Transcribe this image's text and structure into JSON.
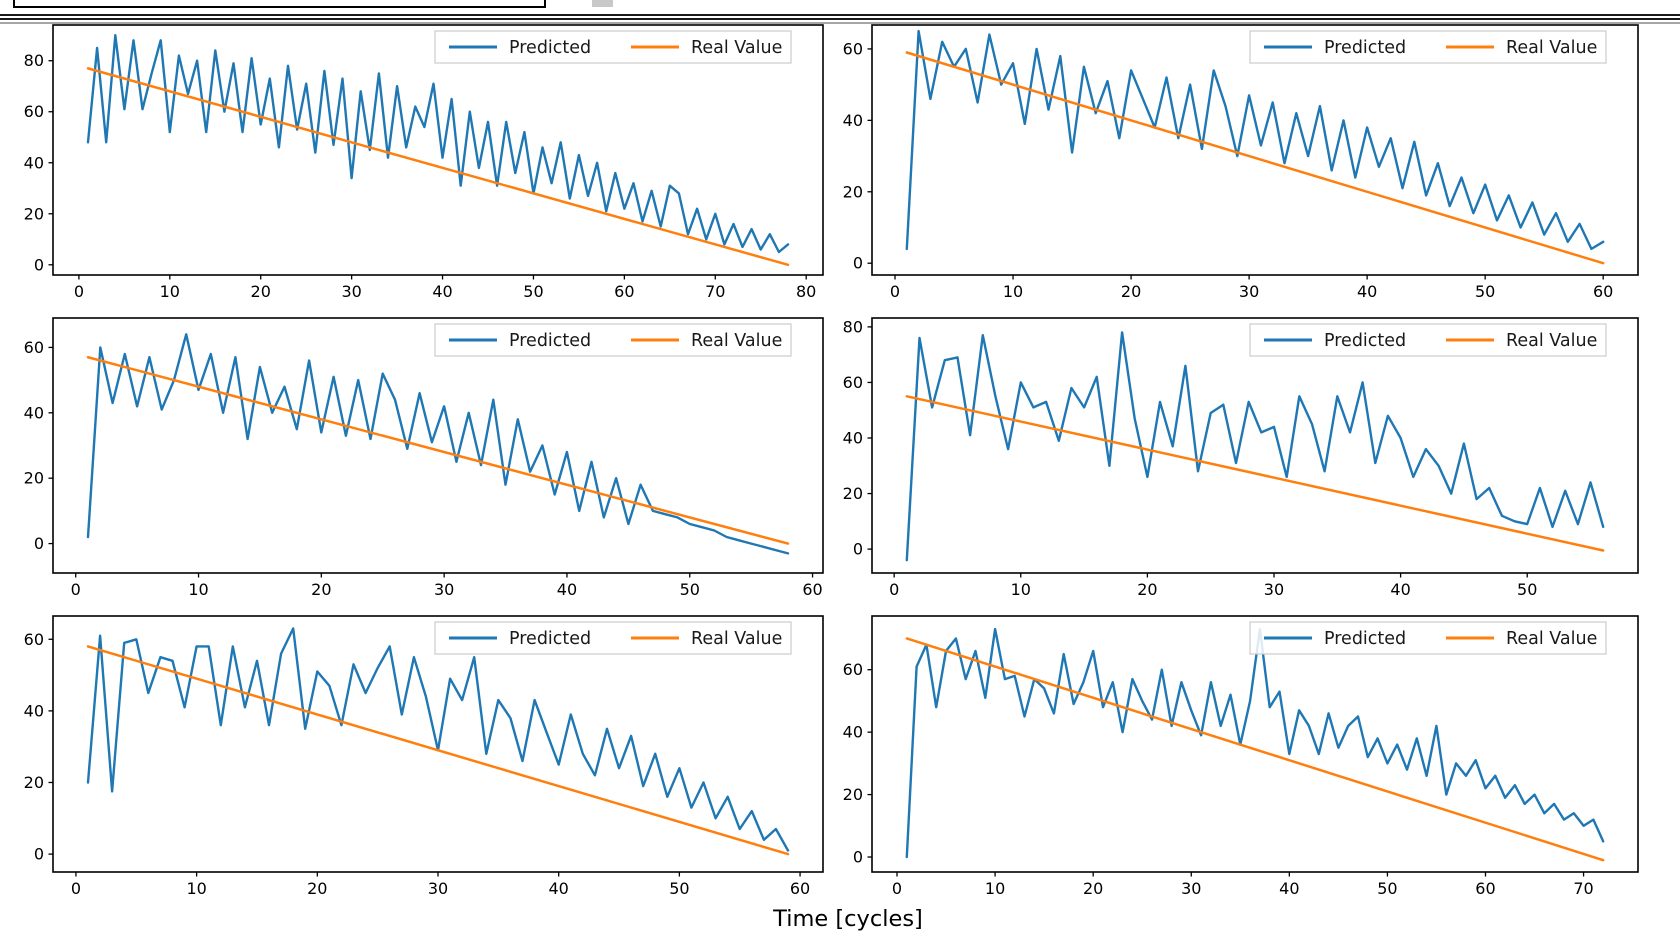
{
  "header": {
    "rule_color": "#1a1a1a",
    "gray_rule_color": "#a6a6a6",
    "fragment_color": "#c8c8c8"
  },
  "figure": {
    "xlabel": "Time [cycles]",
    "colors": {
      "predicted": "#1f77b4",
      "real_value": "#ff7f0e",
      "axes": "#000000",
      "tick_label": "#000000",
      "legend_border": "#cccccc",
      "legend_text": "#1a1a1a",
      "background": "#ffffff"
    },
    "legend": {
      "location": "upper right",
      "items": [
        {
          "label": "Predicted",
          "color": "#1f77b4"
        },
        {
          "label": "Real Value",
          "color": "#ff7f0e"
        }
      ]
    }
  },
  "chart_data": [
    {
      "type": "line",
      "position": "top-left",
      "xlim": [
        -2.85,
        81.85
      ],
      "ylim": [
        -4,
        94
      ],
      "xticks": [
        0,
        10,
        20,
        30,
        40,
        50,
        60,
        70,
        80
      ],
      "yticks": [
        0,
        20,
        40,
        60,
        80
      ],
      "grid": false,
      "legend": [
        "Predicted",
        "Real Value"
      ],
      "series": [
        {
          "name": "Predicted",
          "x_start": 1,
          "values": [
            48,
            85,
            48,
            90,
            61,
            88,
            61,
            75,
            88,
            52,
            82,
            67,
            80,
            52,
            84,
            60,
            79,
            52,
            81,
            55,
            73,
            46,
            78,
            53,
            71,
            44,
            76,
            47,
            73,
            34,
            68,
            45,
            75,
            42,
            70,
            46,
            62,
            54,
            71,
            42,
            65,
            31,
            60,
            38,
            56,
            31,
            56,
            36,
            52,
            28,
            46,
            32,
            48,
            26,
            43,
            27,
            40,
            21,
            36,
            22,
            32,
            17,
            29,
            15,
            31,
            28,
            12,
            22,
            10,
            20,
            8,
            16,
            7,
            14,
            6,
            12,
            5,
            8
          ]
        },
        {
          "name": "Real Value",
          "x": [
            1,
            78
          ],
          "values": [
            77,
            0
          ]
        }
      ]
    },
    {
      "type": "line",
      "position": "top-right",
      "xlim": [
        -1.95,
        62.95
      ],
      "ylim": [
        -3.3,
        66.7
      ],
      "xticks": [
        0,
        10,
        20,
        30,
        40,
        50,
        60
      ],
      "yticks": [
        0,
        20,
        40,
        60
      ],
      "grid": false,
      "legend": [
        "Predicted",
        "Real Value"
      ],
      "series": [
        {
          "name": "Predicted",
          "x_start": 1,
          "values": [
            4,
            65,
            46,
            62,
            55,
            60,
            45,
            64,
            50,
            56,
            39,
            60,
            43,
            58,
            31,
            55,
            42,
            51,
            35,
            54,
            46,
            38,
            52,
            35,
            50,
            32,
            54,
            44,
            30,
            47,
            33,
            45,
            28,
            42,
            30,
            44,
            26,
            40,
            24,
            38,
            27,
            35,
            21,
            34,
            19,
            28,
            16,
            24,
            14,
            22,
            12,
            19,
            10,
            17,
            8,
            14,
            6,
            11,
            4,
            6
          ]
        },
        {
          "name": "Real Value",
          "x": [
            1,
            60
          ],
          "values": [
            59,
            0
          ]
        }
      ]
    },
    {
      "type": "line",
      "position": "mid-left",
      "xlim": [
        -1.85,
        60.85
      ],
      "ylim": [
        -9,
        69
      ],
      "xticks": [
        0,
        10,
        20,
        30,
        40,
        50,
        60
      ],
      "yticks": [
        0,
        20,
        40,
        60
      ],
      "grid": false,
      "legend": [
        "Predicted",
        "Real Value"
      ],
      "series": [
        {
          "name": "Predicted",
          "x_start": 1,
          "values": [
            2,
            60,
            43,
            58,
            42,
            57,
            41,
            50,
            64,
            47,
            58,
            40,
            57,
            32,
            54,
            40,
            48,
            35,
            56,
            34,
            51,
            33,
            50,
            32,
            52,
            44,
            29,
            46,
            31,
            42,
            25,
            40,
            24,
            44,
            18,
            38,
            22,
            30,
            15,
            28,
            10,
            25,
            8,
            20,
            6,
            18,
            10,
            9,
            8,
            6,
            5,
            4,
            2,
            1,
            0,
            -1,
            -2,
            -3
          ]
        },
        {
          "name": "Real Value",
          "x": [
            1,
            58
          ],
          "values": [
            57,
            0
          ]
        }
      ]
    },
    {
      "type": "line",
      "position": "mid-right",
      "xlim": [
        -1.75,
        58.75
      ],
      "ylim": [
        -8.6,
        83.2
      ],
      "xticks": [
        0,
        10,
        20,
        30,
        40,
        50
      ],
      "yticks": [
        0,
        20,
        40,
        60,
        80
      ],
      "grid": false,
      "legend": [
        "Predicted",
        "Real Value"
      ],
      "series": [
        {
          "name": "Predicted",
          "x_start": 1,
          "values": [
            -4,
            76,
            51,
            68,
            69,
            41,
            77,
            55,
            36,
            60,
            51,
            53,
            39,
            58,
            51,
            62,
            30,
            78,
            47,
            26,
            53,
            37,
            66,
            28,
            49,
            52,
            31,
            53,
            42,
            44,
            26,
            55,
            45,
            28,
            55,
            42,
            60,
            31,
            48,
            40,
            26,
            36,
            30,
            20,
            38,
            18,
            22,
            12,
            10,
            9,
            22,
            8,
            21,
            9,
            24,
            8
          ]
        },
        {
          "name": "Real Value",
          "x": [
            1,
            56
          ],
          "values": [
            55,
            -0.5
          ]
        }
      ]
    },
    {
      "type": "line",
      "position": "bottom-left",
      "xlim": [
        -1.9,
        61.9
      ],
      "ylim": [
        -5,
        66.5
      ],
      "xticks": [
        0,
        10,
        20,
        30,
        40,
        50,
        60
      ],
      "yticks": [
        0,
        20,
        40,
        60
      ],
      "grid": false,
      "legend": [
        "Predicted",
        "Real Value"
      ],
      "series": [
        {
          "name": "Predicted",
          "x_start": 1,
          "values": [
            20,
            61,
            17.5,
            59,
            60,
            45,
            55,
            54,
            41,
            58,
            58,
            36,
            58,
            41,
            54,
            36,
            56,
            63,
            35,
            51,
            47,
            36,
            53,
            45,
            52,
            58,
            39,
            55,
            44,
            29,
            49,
            43,
            55,
            28,
            43,
            38,
            26,
            43,
            34,
            25,
            39,
            28,
            22,
            35,
            24,
            33,
            19,
            28,
            16,
            24,
            13,
            20,
            10,
            16,
            7,
            12,
            4,
            7,
            1
          ]
        },
        {
          "name": "Real Value",
          "x": [
            1,
            59
          ],
          "values": [
            58,
            0
          ]
        }
      ]
    },
    {
      "type": "line",
      "position": "bottom-right",
      "xlim": [
        -2.55,
        75.55
      ],
      "ylim": [
        -4.8,
        77.2
      ],
      "xticks": [
        0,
        10,
        20,
        30,
        40,
        50,
        60,
        70
      ],
      "yticks": [
        0,
        20,
        40,
        60
      ],
      "grid": false,
      "legend": [
        "Predicted",
        "Real Value"
      ],
      "series": [
        {
          "name": "Predicted",
          "x_start": 1,
          "values": [
            0,
            61,
            68,
            48,
            66,
            70,
            57,
            66,
            51,
            73,
            57,
            58,
            45,
            57,
            54,
            46,
            65,
            49,
            56,
            66,
            48,
            56,
            40,
            57,
            50,
            44,
            60,
            42,
            56,
            47,
            39,
            56,
            42,
            52,
            36,
            50,
            73,
            48,
            53,
            33,
            47,
            42,
            33,
            46,
            35,
            42,
            45,
            32,
            38,
            30,
            36,
            28,
            38,
            26,
            42,
            20,
            30,
            26,
            31,
            22,
            26,
            19,
            23,
            17,
            20,
            14,
            17,
            12,
            14,
            10,
            12,
            5
          ]
        },
        {
          "name": "Real Value",
          "x": [
            1,
            72
          ],
          "values": [
            70,
            -1
          ]
        }
      ]
    }
  ]
}
